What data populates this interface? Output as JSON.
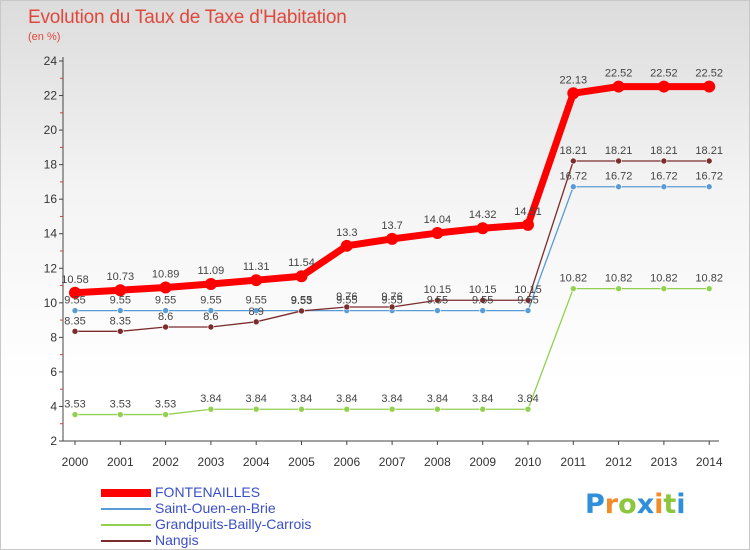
{
  "title": "Evolution du Taux de Taxe d'Habitation",
  "subtitle": "(en %)",
  "chart_data": {
    "type": "line",
    "x": [
      "2000",
      "2001",
      "2002",
      "2003",
      "2004",
      "2005",
      "2006",
      "2007",
      "2008",
      "2009",
      "2010",
      "2011",
      "2012",
      "2013",
      "2014"
    ],
    "yticks": [
      "2",
      "4",
      "6",
      "8",
      "10",
      "12",
      "14",
      "16",
      "18",
      "20",
      "22",
      "24"
    ],
    "ylim": [
      2,
      24
    ],
    "grid": false,
    "legend_position": "bottom-left",
    "series": [
      {
        "name": "FONTENAILLES",
        "color": "#ff0000",
        "values": [
          10.58,
          10.73,
          10.89,
          11.09,
          11.31,
          11.54,
          13.3,
          13.7,
          14.04,
          14.32,
          14.51,
          22.13,
          22.52,
          22.52,
          22.52
        ],
        "labels": [
          "10.58",
          "10.73",
          "10.89",
          "11.09",
          "11.31",
          "11.54",
          "13.3",
          "13.7",
          "14.04",
          "14.32",
          "14.51",
          "22.13",
          "22.52",
          "22.52",
          "22.52"
        ]
      },
      {
        "name": "Saint-Ouen-en-Brie",
        "color": "#5b9bd5",
        "values": [
          9.55,
          9.55,
          9.55,
          9.55,
          9.55,
          9.55,
          9.55,
          9.55,
          9.55,
          9.55,
          9.55,
          16.72,
          16.72,
          16.72,
          16.72
        ],
        "labels": [
          "9.55",
          "9.55",
          "9.55",
          "9.55",
          "9.55",
          "9.55",
          "9.55",
          "9.55",
          "9.55",
          "9.55",
          "9.55",
          "16.72",
          "16.72",
          "16.72",
          "16.72"
        ]
      },
      {
        "name": "Grandpuits-Bailly-Carrois",
        "color": "#92d050",
        "values": [
          3.53,
          3.53,
          3.53,
          3.84,
          3.84,
          3.84,
          3.84,
          3.84,
          3.84,
          3.84,
          3.84,
          10.82,
          10.82,
          10.82,
          10.82
        ],
        "labels": [
          "3.53",
          "3.53",
          "3.53",
          "3.84",
          "3.84",
          "3.84",
          "3.84",
          "3.84",
          "3.84",
          "3.84",
          "3.84",
          "10.82",
          "10.82",
          "10.82",
          "10.82"
        ]
      },
      {
        "name": "Nangis",
        "color": "#7b2c2c",
        "values": [
          8.35,
          8.35,
          8.6,
          8.6,
          8.9,
          9.53,
          9.76,
          9.76,
          10.15,
          10.15,
          10.15,
          18.21,
          18.21,
          18.21,
          18.21
        ],
        "labels": [
          "8.35",
          "8.35",
          "8.6",
          "8.6",
          "8.9",
          "9.53",
          "9.76",
          "9.76",
          "10.15",
          "10.15",
          "10.15",
          "18.21",
          "18.21",
          "18.21",
          "18.21"
        ]
      }
    ]
  },
  "logo": {
    "letters": [
      "P",
      "r",
      "o",
      "x",
      "i",
      "t",
      "i"
    ],
    "colors": [
      "#2f8fd8",
      "#f28c28",
      "#8cc63f",
      "#2f8fd8",
      "#f28c28",
      "#8cc63f",
      "#2f8fd8"
    ]
  }
}
